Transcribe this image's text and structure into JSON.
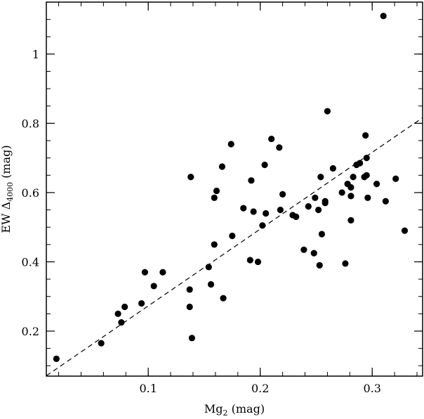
{
  "chart_data": {
    "type": "scatter",
    "xlabel": "Mg",
    "xlabel_sub": "2",
    "xlabel_unit": " (mag)",
    "ylabel": "EW Δ",
    "ylabel_sub": "4000",
    "ylabel_unit": " (mag)",
    "xlim": [
      0.009,
      0.345
    ],
    "ylim": [
      0.07,
      1.15
    ],
    "xticks": [
      0.1,
      0.2,
      0.3
    ],
    "xtick_labels": [
      "0.1",
      "0.2",
      "0.3"
    ],
    "yticks": [
      0.2,
      0.4,
      0.6,
      0.8,
      1.0
    ],
    "ytick_labels": [
      "0.2",
      "0.4",
      "0.6",
      "0.8",
      "1"
    ],
    "x_minor_step": 0.02,
    "y_minor_step": 0.05,
    "grid": false,
    "fit_line": {
      "style": "dashed",
      "x": [
        0.009,
        0.345
      ],
      "y": [
        0.071,
        0.816
      ]
    },
    "points": [
      {
        "x": 0.018,
        "y": 0.12
      },
      {
        "x": 0.058,
        "y": 0.165
      },
      {
        "x": 0.073,
        "y": 0.25
      },
      {
        "x": 0.076,
        "y": 0.225
      },
      {
        "x": 0.079,
        "y": 0.27
      },
      {
        "x": 0.094,
        "y": 0.28
      },
      {
        "x": 0.097,
        "y": 0.37
      },
      {
        "x": 0.105,
        "y": 0.33
      },
      {
        "x": 0.113,
        "y": 0.37
      },
      {
        "x": 0.137,
        "y": 0.27
      },
      {
        "x": 0.137,
        "y": 0.32
      },
      {
        "x": 0.138,
        "y": 0.645
      },
      {
        "x": 0.139,
        "y": 0.18
      },
      {
        "x": 0.154,
        "y": 0.385
      },
      {
        "x": 0.156,
        "y": 0.335
      },
      {
        "x": 0.159,
        "y": 0.45
      },
      {
        "x": 0.159,
        "y": 0.585
      },
      {
        "x": 0.161,
        "y": 0.605
      },
      {
        "x": 0.166,
        "y": 0.675
      },
      {
        "x": 0.167,
        "y": 0.295
      },
      {
        "x": 0.174,
        "y": 0.74
      },
      {
        "x": 0.175,
        "y": 0.475
      },
      {
        "x": 0.185,
        "y": 0.555
      },
      {
        "x": 0.191,
        "y": 0.405
      },
      {
        "x": 0.192,
        "y": 0.635
      },
      {
        "x": 0.194,
        "y": 0.545
      },
      {
        "x": 0.198,
        "y": 0.4
      },
      {
        "x": 0.202,
        "y": 0.505
      },
      {
        "x": 0.204,
        "y": 0.68
      },
      {
        "x": 0.205,
        "y": 0.54
      },
      {
        "x": 0.21,
        "y": 0.755
      },
      {
        "x": 0.217,
        "y": 0.73
      },
      {
        "x": 0.218,
        "y": 0.55
      },
      {
        "x": 0.22,
        "y": 0.595
      },
      {
        "x": 0.229,
        "y": 0.535
      },
      {
        "x": 0.232,
        "y": 0.53
      },
      {
        "x": 0.239,
        "y": 0.435
      },
      {
        "x": 0.243,
        "y": 0.56
      },
      {
        "x": 0.248,
        "y": 0.425
      },
      {
        "x": 0.249,
        "y": 0.585
      },
      {
        "x": 0.252,
        "y": 0.55
      },
      {
        "x": 0.253,
        "y": 0.39
      },
      {
        "x": 0.254,
        "y": 0.645
      },
      {
        "x": 0.255,
        "y": 0.48
      },
      {
        "x": 0.258,
        "y": 0.575
      },
      {
        "x": 0.258,
        "y": 0.57
      },
      {
        "x": 0.26,
        "y": 0.835
      },
      {
        "x": 0.265,
        "y": 0.67
      },
      {
        "x": 0.273,
        "y": 0.6
      },
      {
        "x": 0.276,
        "y": 0.395
      },
      {
        "x": 0.278,
        "y": 0.625
      },
      {
        "x": 0.281,
        "y": 0.52
      },
      {
        "x": 0.281,
        "y": 0.59
      },
      {
        "x": 0.281,
        "y": 0.615
      },
      {
        "x": 0.283,
        "y": 0.645
      },
      {
        "x": 0.286,
        "y": 0.68
      },
      {
        "x": 0.289,
        "y": 0.685
      },
      {
        "x": 0.293,
        "y": 0.645
      },
      {
        "x": 0.294,
        "y": 0.765
      },
      {
        "x": 0.295,
        "y": 0.7
      },
      {
        "x": 0.295,
        "y": 0.65
      },
      {
        "x": 0.296,
        "y": 0.585
      },
      {
        "x": 0.304,
        "y": 0.625
      },
      {
        "x": 0.31,
        "y": 1.11
      },
      {
        "x": 0.312,
        "y": 0.575
      },
      {
        "x": 0.321,
        "y": 0.64
      },
      {
        "x": 0.329,
        "y": 0.49
      }
    ]
  }
}
